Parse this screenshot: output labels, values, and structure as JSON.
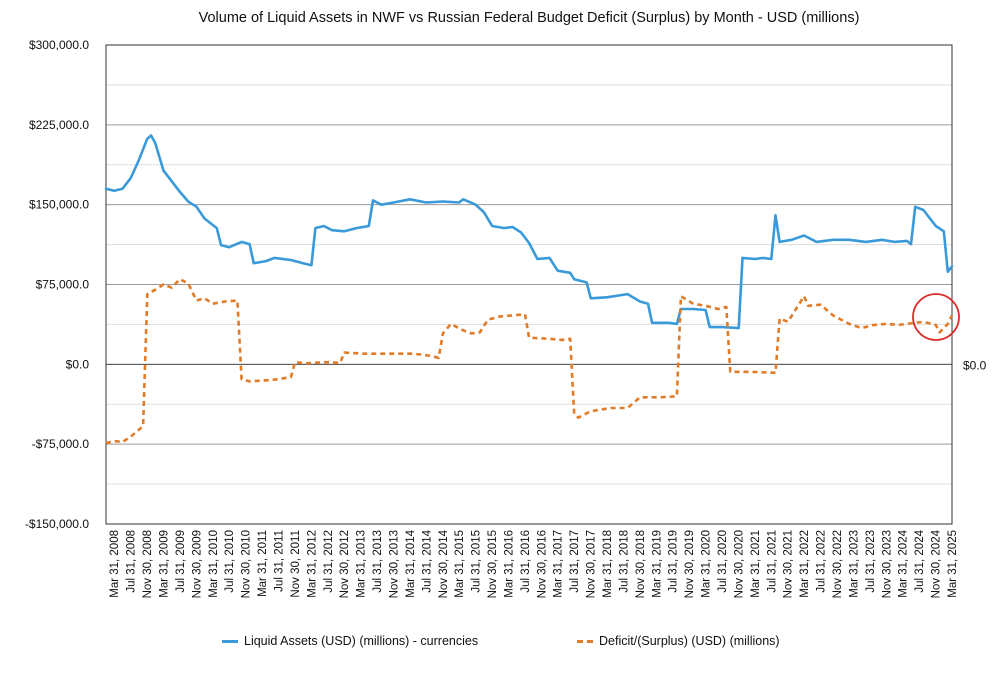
{
  "chart_data": {
    "type": "line",
    "title": "Volume of Liquid Assets in NWF vs Russian Federal Budget Deficit (Surplus) by Month - USD (millions)",
    "ylim": [
      -150000,
      300000
    ],
    "xlim": [
      "2008-03-31",
      "2025-05-31"
    ],
    "y_ticks": [
      300000,
      225000,
      150000,
      75000,
      0,
      -75000,
      -150000
    ],
    "y_tick_labels": [
      "$300,000.0",
      "$225,000.0",
      "$150,000.0",
      "$75,000.0",
      "$0.0",
      "-$75,000.0",
      "-$150,000.0"
    ],
    "right_axis_label": "$0.0",
    "x_tick_labels": [
      "Mar 31, 2008",
      "Jul 31, 2008",
      "Nov 30, 2008",
      "Mar 31, 2009",
      "Jul 31, 2009",
      "Nov 30, 2009",
      "Mar 31, 2010",
      "Jul 31, 2010",
      "Nov 30, 2010",
      "Mar 31, 2011",
      "Jul 31, 2011",
      "Nov 30, 2011",
      "Mar 31, 2012",
      "Jul 31, 2012",
      "Nov 30, 2012",
      "Mar 31, 2013",
      "Jul 31, 2013",
      "Nov 30, 2013",
      "Mar 31, 2014",
      "Jul 31, 2014",
      "Nov 30, 2014",
      "Mar 31, 2015",
      "Jul 31, 2015",
      "Nov 30, 2015",
      "Mar 31, 2016",
      "Jul 31, 2016",
      "Nov 30, 2016",
      "Mar 31, 2017",
      "Jul 31, 2017",
      "Nov 30, 2017",
      "Mar 31, 2018",
      "Jul 31, 2018",
      "Nov 30, 2018",
      "Mar 31, 2019",
      "Jul 31, 2019",
      "Nov 30, 2019",
      "Mar 31, 2020",
      "Jul 31, 2020",
      "Nov 30, 2020",
      "Mar 31, 2021",
      "Jul 31, 2021",
      "Nov 30, 2021",
      "Mar 31, 2022",
      "Jul 31, 2022",
      "Nov 30, 2022",
      "Mar 31, 2023",
      "Jul 31, 2023",
      "Nov 30, 2023",
      "Mar 31, 2024",
      "Jul 31, 2024",
      "Nov 30, 2024",
      "Mar 31, 2025"
    ],
    "grid": true,
    "legend_position": "bottom",
    "annotation": "red circle highlighting late 2024 - 2025",
    "series": [
      {
        "name": "Liquid Assets (USD) (millions) - currencies",
        "color": "#3a9ad9",
        "style": "solid",
        "points": [
          [
            "2008-03-31",
            165000
          ],
          [
            "2008-05-31",
            163000
          ],
          [
            "2008-07-31",
            165000
          ],
          [
            "2008-09-30",
            175000
          ],
          [
            "2008-11-30",
            192000
          ],
          [
            "2009-01-31",
            212000
          ],
          [
            "2009-02-28",
            215000
          ],
          [
            "2009-03-31",
            208000
          ],
          [
            "2009-05-31",
            182000
          ],
          [
            "2009-07-31",
            172000
          ],
          [
            "2009-09-30",
            162000
          ],
          [
            "2009-11-30",
            153000
          ],
          [
            "2010-01-31",
            148000
          ],
          [
            "2010-03-31",
            137000
          ],
          [
            "2010-06-30",
            128000
          ],
          [
            "2010-07-31",
            112000
          ],
          [
            "2010-09-30",
            110000
          ],
          [
            "2010-12-31",
            115000
          ],
          [
            "2011-02-28",
            113000
          ],
          [
            "2011-03-31",
            95000
          ],
          [
            "2011-06-30",
            97000
          ],
          [
            "2011-08-31",
            100000
          ],
          [
            "2011-12-31",
            98000
          ],
          [
            "2012-03-31",
            95000
          ],
          [
            "2012-05-31",
            93000
          ],
          [
            "2012-06-30",
            128000
          ],
          [
            "2012-08-31",
            130000
          ],
          [
            "2012-10-31",
            126000
          ],
          [
            "2013-01-31",
            125000
          ],
          [
            "2013-04-30",
            128000
          ],
          [
            "2013-07-31",
            130000
          ],
          [
            "2013-08-31",
            154000
          ],
          [
            "2013-10-31",
            150000
          ],
          [
            "2014-01-31",
            152000
          ],
          [
            "2014-05-31",
            155000
          ],
          [
            "2014-09-30",
            152000
          ],
          [
            "2015-01-31",
            153000
          ],
          [
            "2015-05-31",
            152000
          ],
          [
            "2015-06-30",
            155000
          ],
          [
            "2015-09-30",
            150000
          ],
          [
            "2015-11-30",
            143000
          ],
          [
            "2016-01-31",
            130000
          ],
          [
            "2016-04-30",
            128000
          ],
          [
            "2016-06-30",
            129000
          ],
          [
            "2016-08-31",
            124000
          ],
          [
            "2016-10-31",
            114000
          ],
          [
            "2016-12-31",
            99000
          ],
          [
            "2017-03-31",
            100000
          ],
          [
            "2017-05-31",
            88000
          ],
          [
            "2017-08-31",
            86000
          ],
          [
            "2017-09-30",
            80000
          ],
          [
            "2017-12-31",
            77000
          ],
          [
            "2018-01-31",
            62000
          ],
          [
            "2018-05-31",
            63000
          ],
          [
            "2018-10-31",
            66000
          ],
          [
            "2019-01-31",
            59000
          ],
          [
            "2019-03-31",
            57000
          ],
          [
            "2019-04-30",
            39000
          ],
          [
            "2019-08-31",
            39000
          ],
          [
            "2019-10-31",
            38000
          ],
          [
            "2019-11-30",
            52000
          ],
          [
            "2020-02-29",
            52000
          ],
          [
            "2020-05-31",
            51000
          ],
          [
            "2020-06-30",
            35000
          ],
          [
            "2020-09-30",
            35000
          ],
          [
            "2021-01-31",
            34000
          ],
          [
            "2021-02-28",
            100000
          ],
          [
            "2021-05-31",
            99000
          ],
          [
            "2021-07-31",
            100000
          ],
          [
            "2021-09-30",
            99000
          ],
          [
            "2021-10-31",
            140000
          ],
          [
            "2021-11-30",
            115000
          ],
          [
            "2022-02-28",
            117000
          ],
          [
            "2022-05-31",
            121000
          ],
          [
            "2022-08-31",
            115000
          ],
          [
            "2022-12-31",
            117000
          ],
          [
            "2023-04-30",
            117000
          ],
          [
            "2023-08-31",
            115000
          ],
          [
            "2023-12-31",
            117000
          ],
          [
            "2024-03-31",
            115000
          ],
          [
            "2024-06-30",
            116000
          ],
          [
            "2024-07-31",
            113000
          ],
          [
            "2024-08-31",
            148000
          ],
          [
            "2024-10-31",
            145000
          ],
          [
            "2025-01-31",
            130000
          ],
          [
            "2025-03-31",
            125000
          ],
          [
            "2025-04-30",
            87000
          ],
          [
            "2025-05-31",
            92000
          ]
        ]
      }
    ]
  },
  "legend": {
    "series1_label": "Liquid Assets (USD) (millions) - currencies",
    "series2_label": "Deficit/(Surplus) (USD) (millions)"
  }
}
